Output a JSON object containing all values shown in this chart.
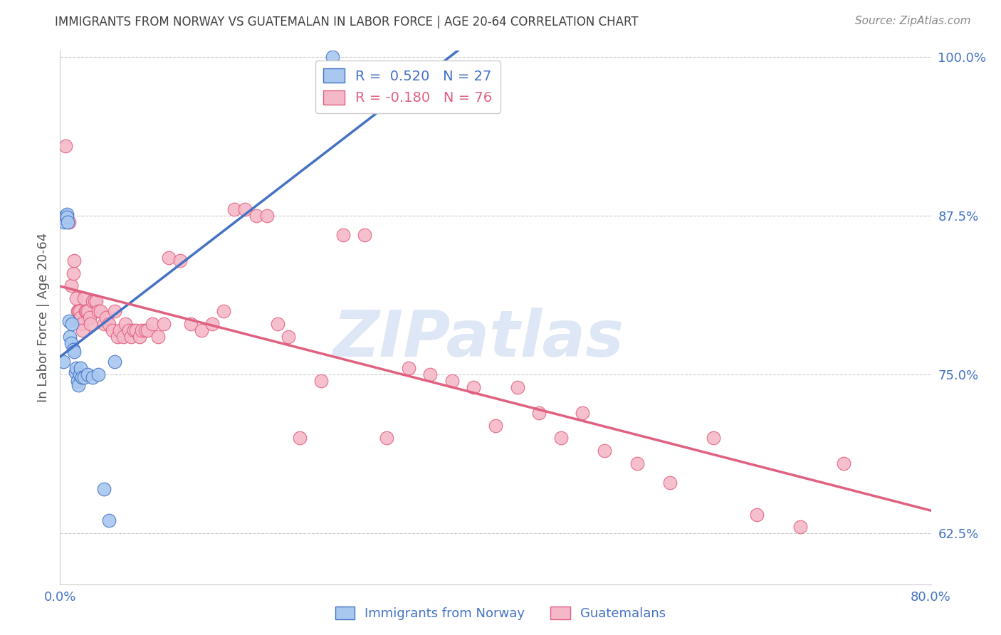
{
  "title": "IMMIGRANTS FROM NORWAY VS GUATEMALAN IN LABOR FORCE | AGE 20-64 CORRELATION CHART",
  "source": "Source: ZipAtlas.com",
  "ylabel": "In Labor Force | Age 20-64",
  "xlim": [
    0.0,
    0.8
  ],
  "ylim": [
    0.585,
    1.005
  ],
  "xticks": [
    0.0,
    0.1,
    0.2,
    0.3,
    0.4,
    0.5,
    0.6,
    0.7,
    0.8
  ],
  "yticks_right": [
    0.625,
    0.75,
    0.875,
    1.0
  ],
  "yticklabels_right": [
    "62.5%",
    "75.0%",
    "87.5%",
    "100.0%"
  ],
  "norway_R": 0.52,
  "norway_N": 27,
  "guatemalan_R": -0.18,
  "guatemalan_N": 76,
  "norway_color": "#a8c8f0",
  "norway_line_color": "#4472c4",
  "guatemalan_color": "#f5b8c8",
  "guatemalan_line_color": "#e06080",
  "legend_label_norway": "Immigrants from Norway",
  "legend_label_guatemalan": "Guatemalans",
  "watermark": "ZIPatlas",
  "watermark_color": "#c8d8f0",
  "background_color": "#ffffff",
  "grid_color": "#cccccc",
  "title_color": "#404040",
  "axis_label_color": "#4472c4",
  "norway_x": [
    0.003,
    0.004,
    0.005,
    0.006,
    0.006,
    0.007,
    0.008,
    0.009,
    0.01,
    0.011,
    0.012,
    0.013,
    0.014,
    0.015,
    0.016,
    0.017,
    0.018,
    0.019,
    0.02,
    0.022,
    0.025,
    0.03,
    0.035,
    0.04,
    0.045,
    0.05,
    0.25
  ],
  "norway_y": [
    0.76,
    0.87,
    0.875,
    0.876,
    0.874,
    0.87,
    0.792,
    0.78,
    0.775,
    0.79,
    0.77,
    0.768,
    0.752,
    0.755,
    0.745,
    0.742,
    0.75,
    0.755,
    0.748,
    0.748,
    0.75,
    0.748,
    0.75,
    0.66,
    0.635,
    0.76,
    1.0
  ],
  "guatemalan_x": [
    0.005,
    0.008,
    0.01,
    0.012,
    0.013,
    0.015,
    0.016,
    0.017,
    0.018,
    0.019,
    0.02,
    0.021,
    0.022,
    0.023,
    0.024,
    0.025,
    0.027,
    0.028,
    0.03,
    0.032,
    0.033,
    0.035,
    0.037,
    0.04,
    0.042,
    0.045,
    0.048,
    0.05,
    0.053,
    0.055,
    0.058,
    0.06,
    0.063,
    0.065,
    0.068,
    0.07,
    0.073,
    0.075,
    0.078,
    0.08,
    0.085,
    0.09,
    0.095,
    0.1,
    0.11,
    0.12,
    0.13,
    0.14,
    0.15,
    0.16,
    0.17,
    0.18,
    0.19,
    0.2,
    0.21,
    0.22,
    0.24,
    0.26,
    0.28,
    0.3,
    0.32,
    0.34,
    0.36,
    0.38,
    0.4,
    0.42,
    0.44,
    0.46,
    0.48,
    0.5,
    0.53,
    0.56,
    0.6,
    0.64,
    0.68,
    0.72
  ],
  "guatemalan_y": [
    0.93,
    0.87,
    0.82,
    0.83,
    0.84,
    0.81,
    0.8,
    0.8,
    0.8,
    0.795,
    0.79,
    0.785,
    0.81,
    0.8,
    0.8,
    0.8,
    0.795,
    0.79,
    0.808,
    0.808,
    0.808,
    0.8,
    0.8,
    0.79,
    0.795,
    0.79,
    0.785,
    0.8,
    0.78,
    0.785,
    0.78,
    0.79,
    0.785,
    0.78,
    0.785,
    0.785,
    0.78,
    0.785,
    0.785,
    0.785,
    0.79,
    0.78,
    0.79,
    0.842,
    0.84,
    0.79,
    0.785,
    0.79,
    0.8,
    0.88,
    0.88,
    0.875,
    0.875,
    0.79,
    0.78,
    0.7,
    0.745,
    0.86,
    0.86,
    0.7,
    0.755,
    0.75,
    0.745,
    0.74,
    0.71,
    0.74,
    0.72,
    0.7,
    0.72,
    0.69,
    0.68,
    0.665,
    0.7,
    0.64,
    0.63,
    0.68
  ]
}
